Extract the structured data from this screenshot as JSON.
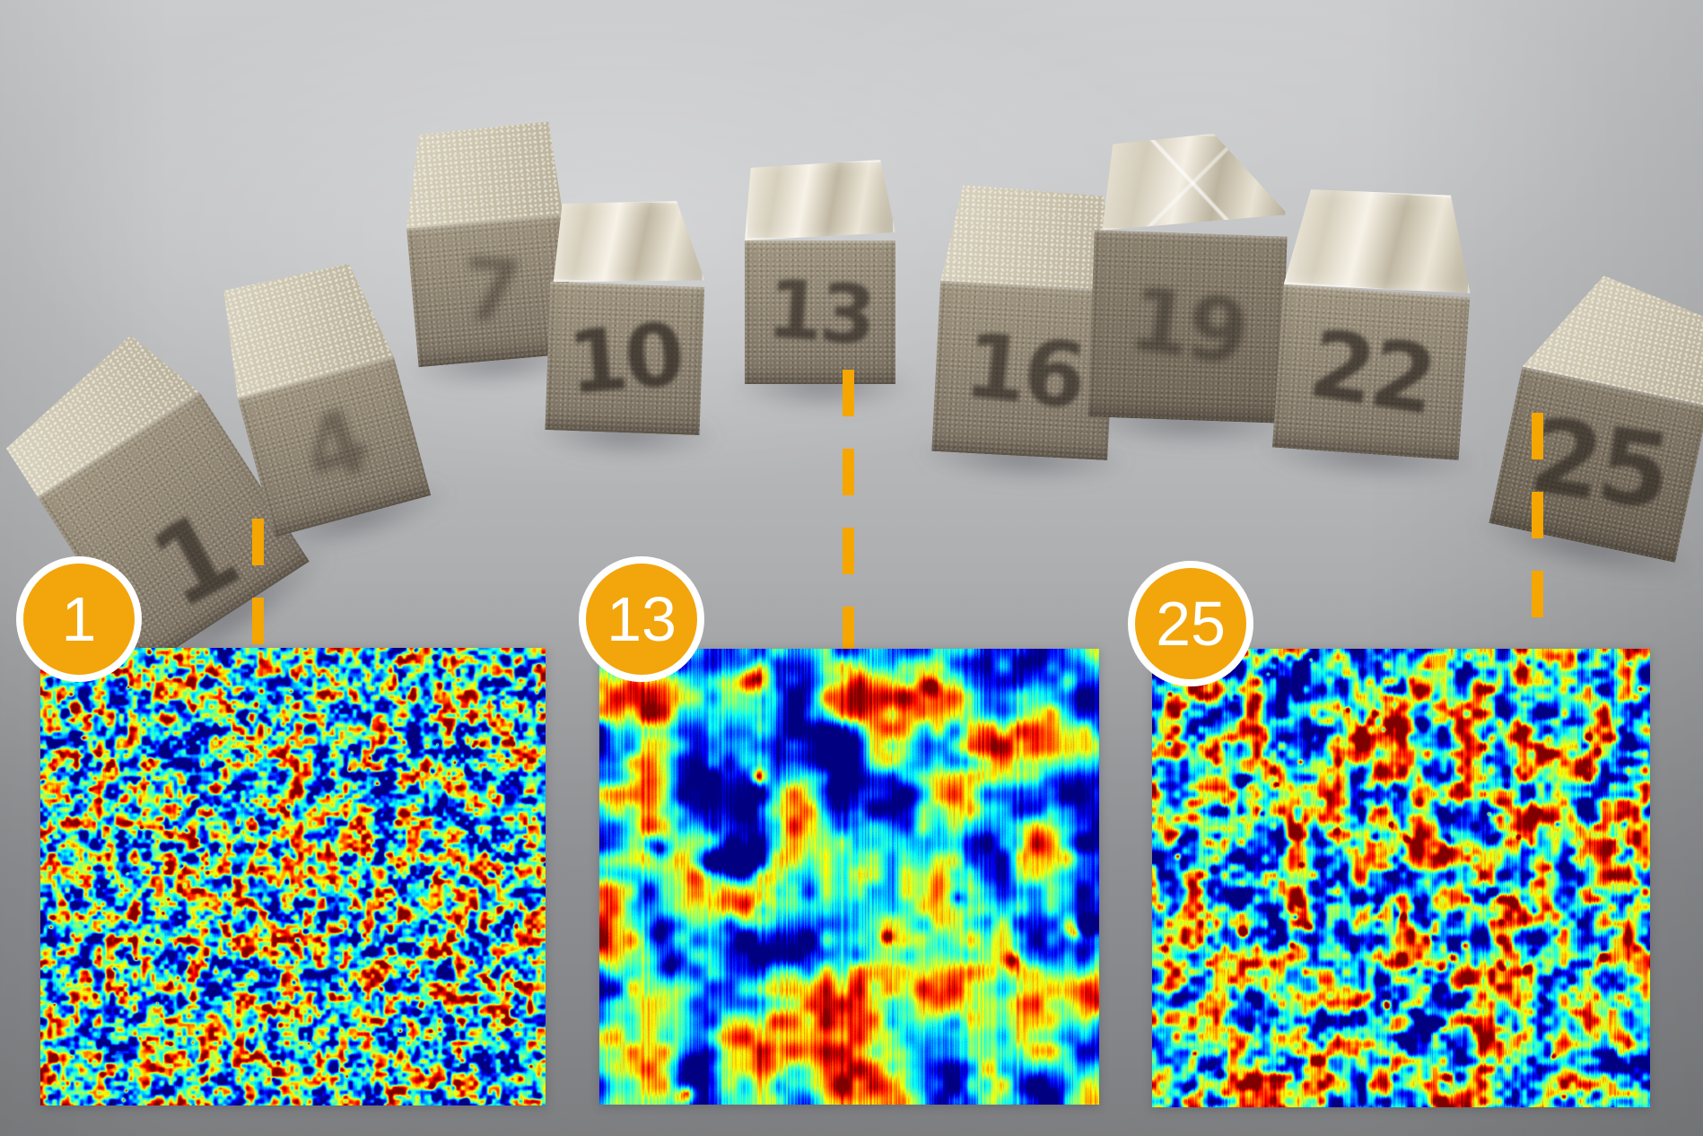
{
  "figure": {
    "photo": {
      "cubes": [
        {
          "number": "1"
        },
        {
          "number": "4"
        },
        {
          "number": "7"
        },
        {
          "number": "10"
        },
        {
          "number": "13"
        },
        {
          "number": "16"
        },
        {
          "number": "19"
        },
        {
          "number": "22"
        },
        {
          "number": "25"
        }
      ]
    },
    "insets": [
      {
        "label": "1"
      },
      {
        "label": "13"
      },
      {
        "label": "25"
      }
    ],
    "colors": {
      "badge_fill": "#F2A60C",
      "badge_ring": "#FFFFFF",
      "connector": "#F5A600",
      "heatmap_palette": "jet",
      "jet_stops": [
        "#00008F",
        "#0020FF",
        "#00FFFF",
        "#40FF80",
        "#FFFF00",
        "#FF8000",
        "#FF0000",
        "#800000"
      ]
    }
  }
}
